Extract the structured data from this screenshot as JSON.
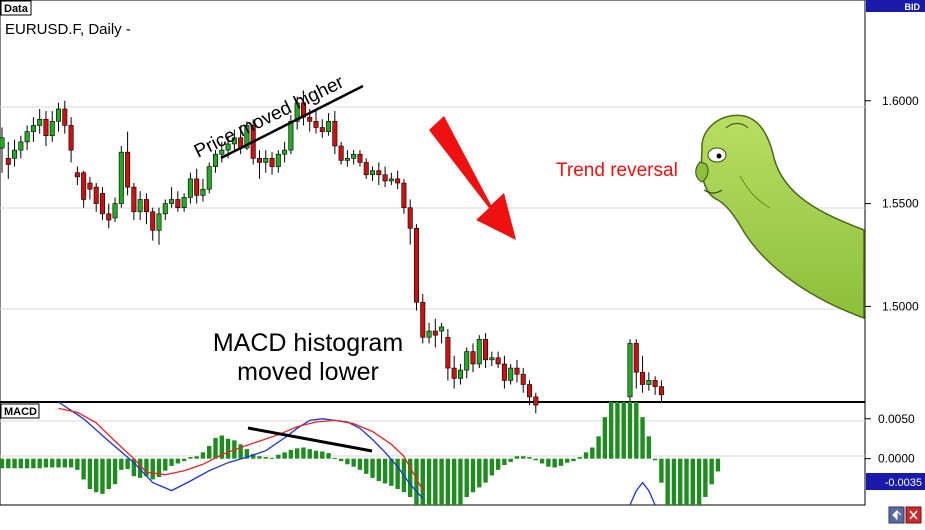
{
  "price_panel": {
    "tab_label": "Data",
    "symbol_label": "EURUSD.F, Daily -",
    "bid_label": "BID"
  },
  "macd_panel": {
    "tab_label": "MACD"
  },
  "annotations": {
    "price_note": "Price moved higher",
    "histogram_note_line1": "MACD histogram",
    "histogram_note_line2": "moved lower",
    "reversal_note": "Trend reversal"
  },
  "colors": {
    "bull": "#22aa22",
    "bear": "#cc1111",
    "histogram": "#1e8c1e",
    "macd_line": "#1a33dd",
    "signal_line": "#ee2222",
    "arrow": "#ee1111",
    "axis_label_bg": "#1a1aaa",
    "reversal_text": "#ee1111"
  },
  "icons": {
    "mascot": "green-worm-mascot-icon",
    "tool_left": "arrows-icon",
    "tool_right": "close-icon"
  },
  "chart_data": [
    {
      "type": "candlestick",
      "title": "EURUSD.F, Daily -",
      "ylim": [
        1.4535,
        1.649
      ],
      "yticks": [
        1.5,
        1.55,
        1.6
      ],
      "ytick_labels": [
        "1.5000",
        "1.5500",
        "1.6000"
      ],
      "candles": [
        [
          1.577,
          1.587,
          1.582,
          1.565
        ],
        [
          1.572,
          1.58,
          1.569,
          1.562
        ],
        [
          1.572,
          1.581,
          1.576,
          1.568
        ],
        [
          1.576,
          1.583,
          1.58,
          1.572
        ],
        [
          1.58,
          1.588,
          1.585,
          1.576
        ],
        [
          1.585,
          1.592,
          1.588,
          1.58
        ],
        [
          1.588,
          1.596,
          1.591,
          1.584
        ],
        [
          1.591,
          1.595,
          1.583,
          1.578
        ],
        [
          1.583,
          1.595,
          1.59,
          1.58
        ],
        [
          1.59,
          1.599,
          1.596,
          1.585
        ],
        [
          1.596,
          1.6,
          1.588,
          1.584
        ],
        [
          1.588,
          1.592,
          1.576,
          1.57
        ],
        [
          1.565,
          1.568,
          1.563,
          1.559
        ],
        [
          1.565,
          1.566,
          1.552,
          1.548
        ],
        [
          1.56,
          1.563,
          1.557,
          1.552
        ],
        [
          1.558,
          1.56,
          1.55,
          1.546
        ],
        [
          1.555,
          1.558,
          1.545,
          1.542
        ],
        [
          1.545,
          1.55,
          1.542,
          1.538
        ],
        [
          1.543,
          1.553,
          1.55,
          1.541
        ],
        [
          1.55,
          1.578,
          1.575,
          1.548
        ],
        [
          1.575,
          1.585,
          1.558,
          1.554
        ],
        [
          1.558,
          1.56,
          1.546,
          1.542
        ],
        [
          1.546,
          1.556,
          1.552,
          1.542
        ],
        [
          1.552,
          1.555,
          1.546,
          1.54
        ],
        [
          1.546,
          1.548,
          1.537,
          1.532
        ],
        [
          1.537,
          1.548,
          1.545,
          1.53
        ],
        [
          1.545,
          1.552,
          1.55,
          1.542
        ],
        [
          1.55,
          1.558,
          1.552,
          1.548
        ],
        [
          1.552,
          1.556,
          1.548,
          1.546
        ],
        [
          1.548,
          1.555,
          1.553,
          1.546
        ],
        [
          1.553,
          1.565,
          1.562,
          1.55
        ],
        [
          1.562,
          1.567,
          1.554,
          1.55
        ],
        [
          1.554,
          1.562,
          1.557,
          1.551
        ],
        [
          1.557,
          1.57,
          1.568,
          1.555
        ],
        [
          1.568,
          1.576,
          1.574,
          1.565
        ],
        [
          1.574,
          1.58,
          1.576,
          1.57
        ],
        [
          1.576,
          1.583,
          1.579,
          1.572
        ],
        [
          1.579,
          1.586,
          1.582,
          1.575
        ],
        [
          1.582,
          1.588,
          1.577,
          1.574
        ],
        [
          1.577,
          1.59,
          1.588,
          1.576
        ],
        [
          1.588,
          1.591,
          1.572,
          1.569
        ],
        [
          1.572,
          1.576,
          1.57,
          1.562
        ],
        [
          1.57,
          1.576,
          1.572,
          1.565
        ],
        [
          1.572,
          1.575,
          1.568,
          1.564
        ],
        [
          1.568,
          1.576,
          1.574,
          1.565
        ],
        [
          1.574,
          1.58,
          1.576,
          1.57
        ],
        [
          1.576,
          1.593,
          1.59,
          1.574
        ],
        [
          1.59,
          1.602,
          1.599,
          1.586
        ],
        [
          1.599,
          1.605,
          1.592,
          1.588
        ],
        [
          1.592,
          1.596,
          1.59,
          1.585
        ],
        [
          1.59,
          1.596,
          1.587,
          1.584
        ],
        [
          1.587,
          1.591,
          1.585,
          1.582
        ],
        [
          1.585,
          1.594,
          1.59,
          1.583
        ],
        [
          1.59,
          1.595,
          1.578,
          1.574
        ],
        [
          1.578,
          1.58,
          1.571,
          1.569
        ],
        [
          1.571,
          1.576,
          1.572,
          1.568
        ],
        [
          1.572,
          1.576,
          1.574,
          1.569
        ],
        [
          1.574,
          1.576,
          1.57,
          1.568
        ],
        [
          1.57,
          1.572,
          1.564,
          1.562
        ],
        [
          1.564,
          1.568,
          1.566,
          1.561
        ],
        [
          1.566,
          1.57,
          1.564,
          1.559
        ],
        [
          1.564,
          1.568,
          1.561,
          1.558
        ],
        [
          1.561,
          1.565,
          1.562,
          1.559
        ],
        [
          1.562,
          1.566,
          1.56,
          1.557
        ],
        [
          1.56,
          1.562,
          1.548,
          1.545
        ],
        [
          1.548,
          1.552,
          1.538,
          1.53
        ],
        [
          1.538,
          1.54,
          1.502,
          1.498
        ],
        [
          1.502,
          1.506,
          1.485,
          1.482
        ],
        [
          1.485,
          1.492,
          1.488,
          1.482
        ],
        [
          1.488,
          1.494,
          1.486,
          1.48
        ],
        [
          1.488,
          1.492,
          1.49,
          1.482
        ],
        [
          1.485,
          1.489,
          1.47,
          1.464
        ],
        [
          1.47,
          1.476,
          1.465,
          1.46
        ],
        [
          1.465,
          1.472,
          1.469,
          1.462
        ],
        [
          1.469,
          1.48,
          1.478,
          1.465
        ],
        [
          1.478,
          1.482,
          1.472,
          1.468
        ],
        [
          1.472,
          1.486,
          1.484,
          1.47
        ],
        [
          1.484,
          1.487,
          1.474,
          1.47
        ],
        [
          1.474,
          1.478,
          1.475,
          1.471
        ],
        [
          1.475,
          1.478,
          1.472,
          1.47
        ],
        [
          1.472,
          1.476,
          1.464,
          1.46
        ],
        [
          1.464,
          1.472,
          1.47,
          1.462
        ],
        [
          1.47,
          1.474,
          1.467,
          1.463
        ],
        [
          1.467,
          1.47,
          1.462,
          1.458
        ],
        [
          1.462,
          1.464,
          1.456,
          1.452
        ],
        [
          1.456,
          1.458,
          1.452,
          1.448
        ],
        null,
        null,
        null,
        null,
        null,
        null,
        null,
        null,
        null,
        null,
        null,
        null,
        null,
        null,
        [
          1.456,
          1.484,
          1.482,
          1.454
        ],
        [
          1.482,
          1.484,
          1.468,
          1.46
        ],
        [
          1.468,
          1.476,
          1.462,
          1.458
        ],
        [
          1.462,
          1.468,
          1.464,
          1.459
        ],
        [
          1.464,
          1.466,
          1.461,
          1.457
        ],
        [
          1.461,
          1.464,
          1.457,
          1.454
        ]
      ]
    },
    {
      "type": "bar",
      "title": "MACD",
      "ylim": [
        -0.0058,
        0.0071
      ],
      "yticks": [
        0,
        0.005
      ],
      "ytick_labels": [
        "0.0000",
        "0.0050"
      ],
      "current_value_label": "-0.0035",
      "histogram": [
        -0.0012,
        -0.0012,
        -0.0012,
        -0.0012,
        -0.0012,
        -0.0012,
        -0.0012,
        -0.0011,
        -0.0011,
        -0.0011,
        -0.0011,
        -0.0011,
        -0.0014,
        -0.0026,
        -0.0038,
        -0.0042,
        -0.0044,
        -0.0038,
        -0.0032,
        -0.0014,
        -0.0013,
        -0.0022,
        -0.0024,
        -0.0022,
        -0.0026,
        -0.0023,
        -0.0015,
        -0.0009,
        -0.0006,
        -0.0003,
        0.0002,
        0.0003,
        0.0008,
        0.0016,
        0.0026,
        0.0029,
        0.0025,
        0.0023,
        0.0018,
        0.0012,
        0.0006,
        0.0003,
        0.0002,
        0.0001,
        0.0005,
        0.0008,
        0.0011,
        0.0013,
        0.0014,
        0.0012,
        0.001,
        0.0009,
        0.0007,
        0.0001,
        -0.0003,
        -0.0007,
        -0.001,
        -0.0014,
        -0.0019,
        -0.0024,
        -0.0028,
        -0.0031,
        -0.0034,
        -0.0038,
        -0.0042,
        -0.0048,
        -0.0058,
        -0.0058,
        -0.0058,
        -0.0058,
        -0.0058,
        -0.0058,
        -0.0058,
        -0.0058,
        -0.0048,
        -0.0042,
        -0.0036,
        -0.003,
        -0.0021,
        -0.0014,
        -0.0008,
        -0.0004,
        0.0003,
        0.0003,
        0.0002,
        -0.0002,
        -0.0006,
        -0.001,
        -0.0011,
        -0.0009,
        -0.0005,
        -0.0003,
        0.0002,
        0.0008,
        0.0014,
        0.0028,
        0.0052,
        0.0071,
        0.0071,
        0.0071,
        0.0071,
        0.0071,
        0.0052,
        0.0028,
        -0.0002,
        -0.003,
        -0.0058,
        -0.0058,
        -0.0058,
        -0.0058,
        -0.0058,
        -0.0058,
        -0.0048,
        -0.0032,
        -0.0016
      ],
      "macd_line": [
        [
          9,
          0.0071
        ],
        [
          13,
          0.005
        ],
        [
          17,
          0.0022
        ],
        [
          21,
          -0.0005
        ],
        [
          24,
          -0.003
        ],
        [
          27,
          -0.004
        ],
        [
          30,
          -0.0028
        ],
        [
          33,
          -0.0015
        ],
        [
          36,
          -0.0005
        ],
        [
          39,
          0.0002
        ],
        [
          42,
          0.001
        ],
        [
          45,
          0.0026
        ],
        [
          47,
          0.0038
        ],
        [
          49,
          0.0048
        ],
        [
          51,
          0.005
        ],
        [
          53,
          0.0048
        ],
        [
          55,
          0.0046
        ],
        [
          57,
          0.0038
        ],
        [
          59,
          0.0024
        ],
        [
          61,
          0.0008
        ],
        [
          63,
          -0.001
        ],
        [
          65,
          -0.0032
        ],
        [
          67,
          -0.005
        ]
      ],
      "macd_line_2": [
        [
          100,
          -0.0058
        ],
        [
          101,
          -0.004
        ],
        [
          102,
          -0.003
        ],
        [
          103,
          -0.004
        ],
        [
          104,
          -0.0058
        ]
      ],
      "signal_line": [
        [
          9,
          0.0063
        ],
        [
          12,
          0.0058
        ],
        [
          15,
          0.0045
        ],
        [
          18,
          0.0022
        ],
        [
          21,
          0.0
        ],
        [
          23,
          -0.0017
        ],
        [
          26,
          -0.002
        ],
        [
          29,
          -0.0015
        ],
        [
          32,
          -0.0007
        ],
        [
          35,
          0.0005
        ],
        [
          38,
          0.0014
        ],
        [
          41,
          0.0022
        ],
        [
          44,
          0.003
        ],
        [
          47,
          0.004
        ],
        [
          50,
          0.0046
        ],
        [
          53,
          0.0048
        ],
        [
          56,
          0.0044
        ],
        [
          59,
          0.0034
        ],
        [
          62,
          0.0018
        ],
        [
          64,
          0.0003
        ],
        [
          66,
          -0.0025
        ],
        [
          67,
          -0.004
        ]
      ]
    }
  ]
}
